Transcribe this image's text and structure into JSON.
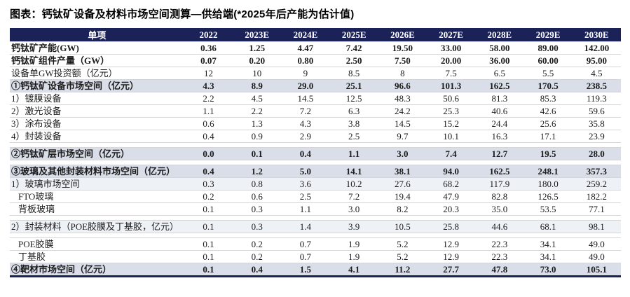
{
  "title": "图表：钙钛矿设备及材料市场空间测算—供给端(*2025年后产能为估计值)",
  "colors": {
    "header_bg": "#1b2258",
    "header_text": "#ffffff",
    "section_row_bg": "#d9dee9",
    "subsection_row_bg": "#eef1f6",
    "bottom_border": "#1b2258"
  },
  "table": {
    "header": [
      "单项",
      "2022",
      "2023E",
      "2024E",
      "2025E",
      "2026E",
      "2027E",
      "2028E",
      "2029E",
      "2030E"
    ],
    "rows": [
      {
        "label": "钙钛矿产能(GW)",
        "style": "bold",
        "values": [
          "0.36",
          "1.25",
          "4.47",
          "7.42",
          "19.50",
          "33.00",
          "58.00",
          "89.00",
          "142.00"
        ]
      },
      {
        "label": "钙钛矿组件产量（GW）",
        "style": "bold",
        "values": [
          "0.07",
          "0.20",
          "0.80",
          "2.50",
          "7.50",
          "20.00",
          "36.00",
          "60.00",
          "95.00"
        ]
      },
      {
        "label": "设备单GW投资额（亿元）",
        "style": "normal",
        "values": [
          "12",
          "10",
          "9",
          "8.5",
          "8",
          "7.5",
          "6.5",
          "5.5",
          "4.5"
        ]
      },
      {
        "label": "①钙钛矿设备市场空间（亿元）",
        "style": "section",
        "values": [
          "4.3",
          "8.9",
          "29.0",
          "25.1",
          "96.6",
          "101.3",
          "162.5",
          "170.5",
          "238.5"
        ]
      },
      {
        "label": "1）镀膜设备",
        "style": "normal",
        "values": [
          "2.2",
          "4.5",
          "14.5",
          "12.5",
          "48.3",
          "50.6",
          "81.3",
          "85.3",
          "119.3"
        ]
      },
      {
        "label": "2）激光设备",
        "style": "normal",
        "values": [
          "1.1",
          "2.2",
          "7.2",
          "6.3",
          "24.2",
          "25.3",
          "40.6",
          "42.6",
          "59.6"
        ]
      },
      {
        "label": "3）涂布设备",
        "style": "normal",
        "values": [
          "0.6",
          "1.3",
          "4.3",
          "3.8",
          "14.5",
          "15.2",
          "24.4",
          "25.6",
          "35.8"
        ]
      },
      {
        "label": "4）封装设备",
        "style": "normal",
        "values": [
          "0.4",
          "0.9",
          "2.9",
          "2.5",
          "9.7",
          "10.1",
          "16.3",
          "17.1",
          "23.9"
        ]
      },
      {
        "type": "gap"
      },
      {
        "label": "②钙钛矿层市场空间（亿元）",
        "style": "section",
        "values": [
          "0.0",
          "0.1",
          "0.4",
          "1.1",
          "3.0",
          "7.4",
          "12.7",
          "19.5",
          "28.0"
        ]
      },
      {
        "type": "gap"
      },
      {
        "label": "③玻璃及其他封装材料市场空间（亿元）",
        "style": "section",
        "values": [
          "0.4",
          "1.2",
          "5.0",
          "14.1",
          "38.1",
          "94.0",
          "162.5",
          "248.1",
          "357.3"
        ]
      },
      {
        "label": "1）玻璃市场空间",
        "style": "subsection",
        "values": [
          "0.3",
          "0.8",
          "3.6",
          "10.2",
          "27.6",
          "68.2",
          "117.9",
          "180.0",
          "259.2"
        ]
      },
      {
        "label": "FTO玻璃",
        "style": "indent",
        "values": [
          "0.2",
          "0.6",
          "2.5",
          "7.2",
          "19.4",
          "47.9",
          "82.8",
          "126.5",
          "182.2"
        ]
      },
      {
        "label": "背板玻璃",
        "style": "indent",
        "values": [
          "0.1",
          "0.3",
          "1.1",
          "3.0",
          "8.2",
          "20.3",
          "35.0",
          "53.5",
          "77.1"
        ]
      },
      {
        "type": "gap"
      },
      {
        "label": "2）封装材料（POE胶膜及丁基胶，亿元）",
        "style": "subsection",
        "values": [
          "0.1",
          "0.3",
          "1.4",
          "3.9",
          "10.5",
          "25.8",
          "44.6",
          "68.1",
          "98.1"
        ]
      },
      {
        "type": "gap"
      },
      {
        "label": "POE胶膜",
        "style": "indent",
        "values": [
          "0.1",
          "0.2",
          "0.7",
          "1.9",
          "5.2",
          "12.9",
          "22.3",
          "34.1",
          "49.0"
        ]
      },
      {
        "label": "丁基胶",
        "style": "indent",
        "values": [
          "0.1",
          "0.2",
          "0.7",
          "1.9",
          "5.2",
          "12.9",
          "22.3",
          "34.1",
          "49.0"
        ]
      },
      {
        "label": "④靶材市场空间（亿元）",
        "style": "section",
        "values": [
          "0.1",
          "0.4",
          "1.5",
          "4.1",
          "11.2",
          "27.7",
          "47.8",
          "73.0",
          "105.1"
        ]
      }
    ]
  }
}
